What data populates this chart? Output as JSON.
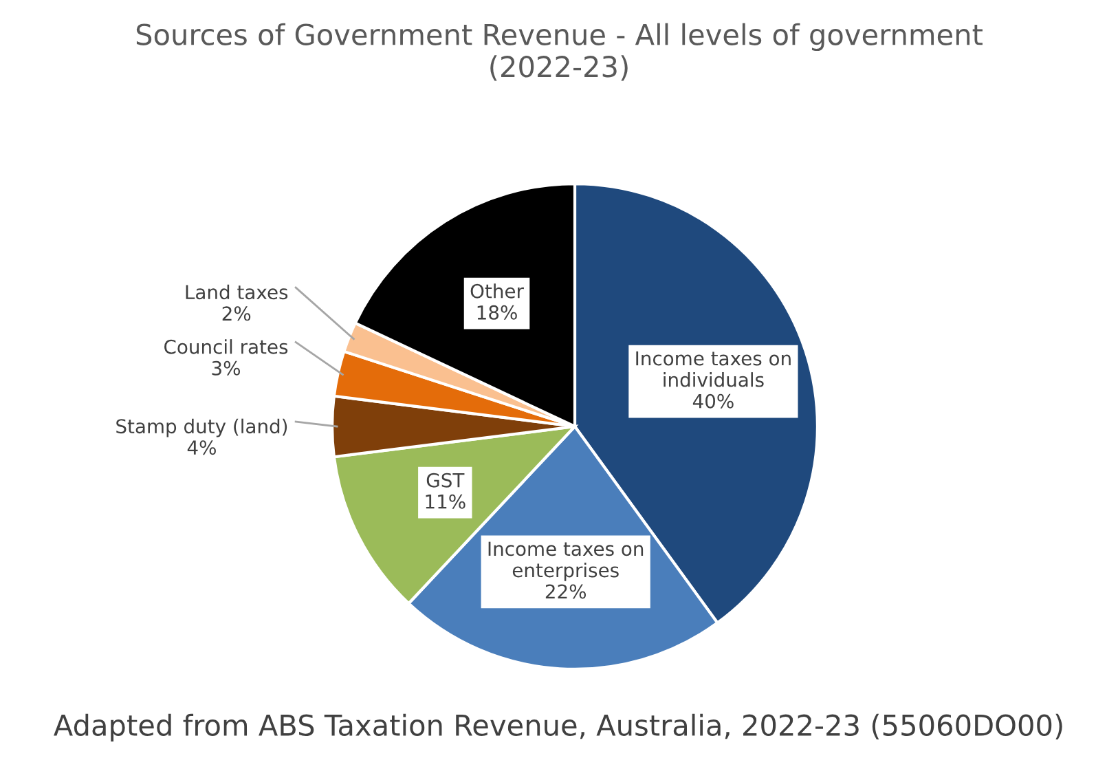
{
  "chart_data": {
    "type": "pie",
    "title": "Sources of Government Revenue - All levels of government\n(2022-23)",
    "categories": [
      "Income taxes on individuals",
      "Income taxes on enterprises",
      "GST",
      "Stamp duty (land)",
      "Council rates",
      "Land taxes",
      "Other"
    ],
    "values": [
      40,
      22,
      11,
      4,
      3,
      2,
      18
    ],
    "colors": [
      "#1f497d",
      "#4a7ebb",
      "#9bbb59",
      "#7f3f0a",
      "#e46c0a",
      "#fac090",
      "#000000"
    ],
    "value_labels": [
      "40%",
      "22%",
      "11%",
      "4%",
      "3%",
      "2%",
      "18%"
    ],
    "annotations": [
      "Adapted from ABS Taxation Revenue, Australia, 2022-23 (55060DO00)"
    ]
  }
}
